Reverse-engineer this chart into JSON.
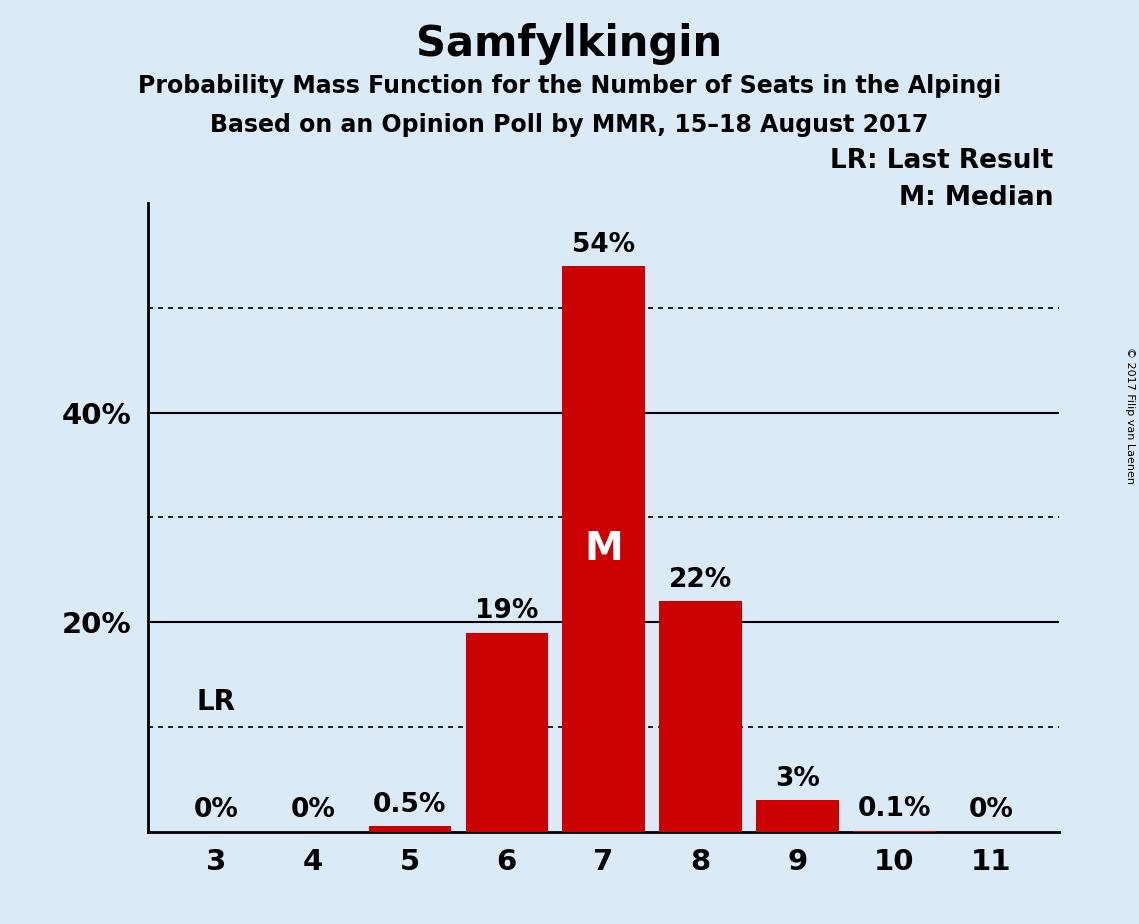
{
  "title": "Samfylkingin",
  "subtitle1": "Probability Mass Function for the Number of Seats in the Alpingi",
  "subtitle2": "Based on an Opinion Poll by MMR, 15–18 August 2017",
  "copyright": "© 2017 Filip van Laenen",
  "seats": [
    3,
    4,
    5,
    6,
    7,
    8,
    9,
    10,
    11
  ],
  "values": [
    0.0,
    0.0,
    0.5,
    19.0,
    54.0,
    22.0,
    3.0,
    0.1,
    0.0
  ],
  "bar_labels": [
    "0%",
    "0%",
    "0.5%",
    "19%",
    "54%",
    "22%",
    "3%",
    "0.1%",
    "0%"
  ],
  "bar_color": "#cc0000",
  "background_color": "#daeaf6",
  "median_seat": 7,
  "median_label": "M",
  "lr_seat": 3,
  "lr_label": "LR",
  "legend_lr": "LR: Last Result",
  "legend_m": "M: Median",
  "ylim": [
    0,
    60
  ],
  "yticks": [
    20,
    40
  ],
  "ytick_labels": [
    "20%",
    "40%"
  ],
  "dotted_lines": [
    10,
    30,
    50
  ],
  "solid_lines": [
    20,
    40
  ],
  "title_fontsize": 30,
  "subtitle_fontsize": 17,
  "bar_label_fontsize": 19,
  "axis_label_fontsize": 21,
  "legend_fontsize": 19
}
